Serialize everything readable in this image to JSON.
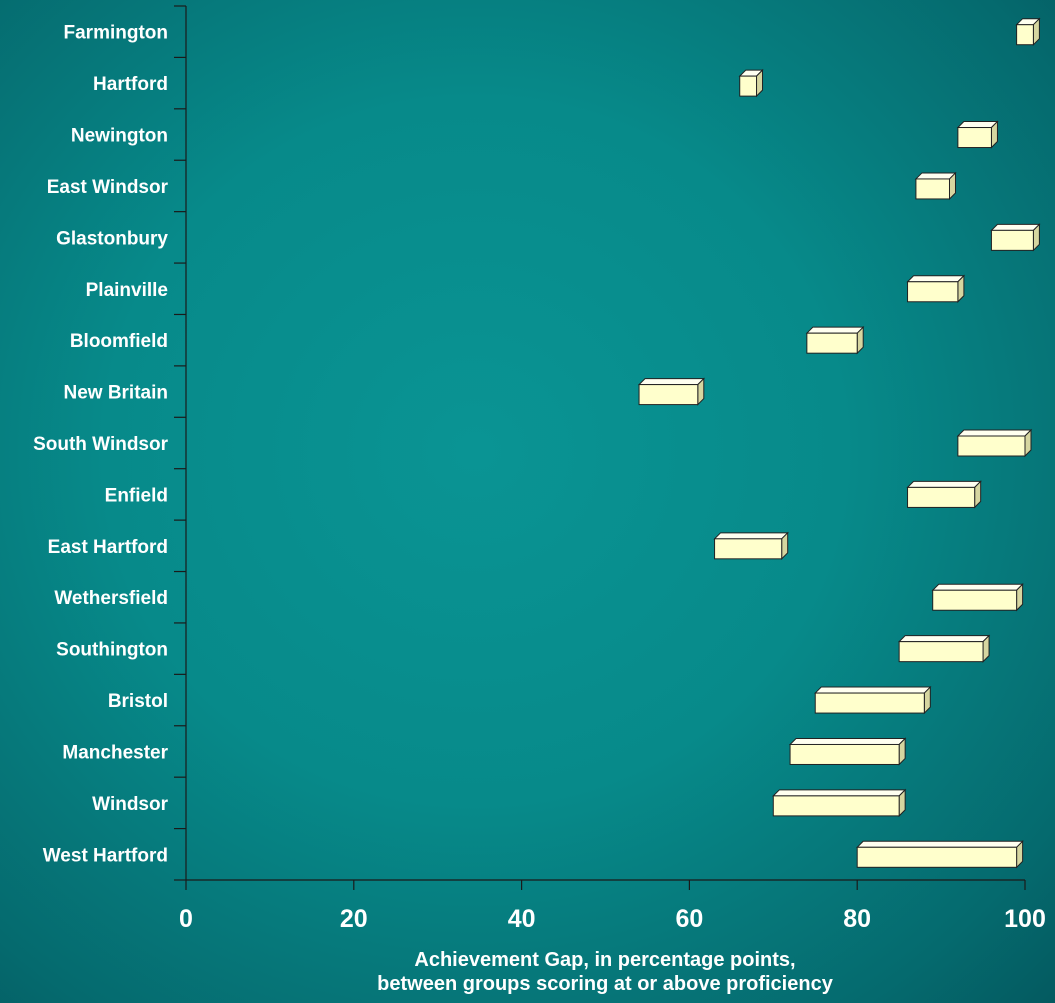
{
  "chart_data": {
    "type": "bar",
    "orientation": "horizontal",
    "style": "floating-range-3d",
    "categories": [
      "Farmington",
      "Hartford",
      "Newington",
      "East Windsor",
      "Glastonbury",
      "Plainville",
      "Bloomfield",
      "New Britain",
      "South Windsor",
      "Enfield",
      "East Hartford",
      "Wethersfield",
      "Southington",
      "Bristol",
      "Manchester",
      "Windsor",
      "West Hartford"
    ],
    "ranges": [
      [
        99,
        101
      ],
      [
        66,
        68
      ],
      [
        92,
        96
      ],
      [
        87,
        91
      ],
      [
        96,
        101
      ],
      [
        86,
        92
      ],
      [
        74,
        80
      ],
      [
        54,
        61
      ],
      [
        92,
        100
      ],
      [
        86,
        94
      ],
      [
        63,
        71
      ],
      [
        89,
        99
      ],
      [
        85,
        95
      ],
      [
        75,
        88
      ],
      [
        72,
        85
      ],
      [
        70,
        85
      ],
      [
        80,
        99
      ]
    ],
    "xlim": [
      0,
      100
    ],
    "xticks": [
      "0",
      "20",
      "40",
      "60",
      "80",
      "100"
    ],
    "xlabel_line1": "Achievement Gap, in percentage points,",
    "xlabel_line2": "between groups scoring at or above proficiency",
    "bar_fill": "#ffffcc",
    "bar_top": "#fffff0",
    "bar_side": "#d6d6a0",
    "bar_stroke": "#222222",
    "axis_color": "#1a1a1a"
  }
}
